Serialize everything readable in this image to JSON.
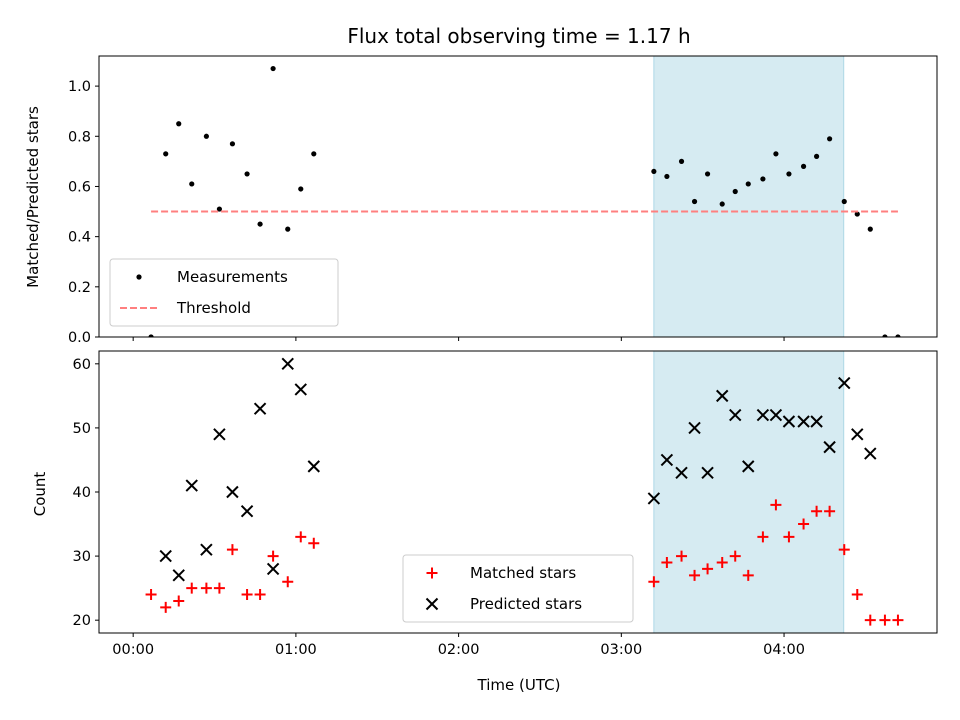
{
  "chart_data": {
    "title": "Flux total observing time = 1.17 h",
    "xlabel": "Time (UTC)",
    "x_unit": "minutes after 00:00 UTC",
    "xlim": [
      -12.6,
      296.4
    ],
    "x_ticks": [
      {
        "value": 0,
        "label": "00:00"
      },
      {
        "value": 60,
        "label": "01:00"
      },
      {
        "value": 120,
        "label": "02:00"
      },
      {
        "value": 180,
        "label": "03:00"
      },
      {
        "value": 240,
        "label": "04:00"
      }
    ],
    "highlight_span": [
      192,
      262
    ],
    "highlight_color": "#add8e6",
    "panels": [
      {
        "id": "ratio",
        "type": "scatter",
        "ylabel": "Matched/Predicted stars",
        "ylim": [
          0,
          1.12
        ],
        "y_ticks": [
          "0.0",
          "0.2",
          "0.4",
          "0.6",
          "0.8",
          "1.0"
        ],
        "legend_position": "lower-left",
        "series": [
          {
            "name": "Measurements",
            "kind": "dot",
            "color": "#000000",
            "x": [
              6.6,
              12,
              16.8,
              21.6,
              27,
              31.8,
              36.6,
              42,
              46.8,
              51.6,
              57,
              61.8,
              66.6,
              192,
              196.8,
              202.2,
              207,
              211.8,
              217.2,
              222,
              226.8,
              232.2,
              237,
              241.8,
              247.2,
              252,
              256.8,
              262.2,
              267,
              271.8,
              277.2,
              282
            ],
            "y": [
              0.0,
              0.73,
              0.85,
              0.61,
              0.8,
              0.51,
              0.77,
              0.65,
              0.45,
              1.07,
              0.43,
              0.59,
              0.73,
              0.66,
              0.64,
              0.7,
              0.54,
              0.65,
              0.53,
              0.58,
              0.61,
              0.63,
              0.73,
              0.65,
              0.68,
              0.72,
              0.79,
              0.54,
              0.49,
              0.43,
              0.0,
              0.0
            ]
          },
          {
            "name": "Threshold",
            "kind": "dashed-line",
            "color": "#ff7f7f",
            "x": [
              6.6,
              282
            ],
            "y": [
              0.5,
              0.5
            ]
          }
        ]
      },
      {
        "id": "counts",
        "type": "scatter",
        "ylabel": "Count",
        "ylim": [
          18,
          62
        ],
        "y_ticks": [
          "20",
          "30",
          "40",
          "50",
          "60"
        ],
        "legend_position": "lower-center",
        "series": [
          {
            "name": "Matched stars",
            "kind": "plus",
            "color": "#ff0000",
            "x": [
              6.6,
              12,
              16.8,
              21.6,
              27,
              31.8,
              36.6,
              42,
              46.8,
              51.6,
              57,
              61.8,
              66.6,
              192,
              196.8,
              202.2,
              207,
              211.8,
              217.2,
              222,
              226.8,
              232.2,
              237,
              241.8,
              247.2,
              252,
              256.8,
              262.2,
              267,
              271.8,
              277.2,
              282
            ],
            "y": [
              24,
              22,
              23,
              25,
              25,
              25,
              31,
              24,
              24,
              30,
              26,
              33,
              32,
              26,
              29,
              30,
              27,
              28,
              29,
              30,
              27,
              33,
              38,
              33,
              35,
              37,
              37,
              31,
              24,
              20,
              20,
              20
            ]
          },
          {
            "name": "Predicted stars",
            "kind": "x",
            "color": "#000000",
            "x": [
              12,
              16.8,
              21.6,
              27,
              31.8,
              36.6,
              42,
              46.8,
              51.6,
              57,
              61.8,
              66.6,
              192,
              196.8,
              202.2,
              207,
              211.8,
              217.2,
              222,
              226.8,
              232.2,
              237,
              241.8,
              247.2,
              252,
              256.8,
              262.2,
              267,
              271.8
            ],
            "y": [
              30,
              27,
              41,
              31,
              49,
              40,
              37,
              53,
              28,
              60,
              56,
              44,
              39,
              45,
              43,
              50,
              43,
              55,
              52,
              44,
              52,
              52,
              51,
              51,
              51,
              47,
              57,
              49,
              46
            ]
          }
        ]
      }
    ]
  }
}
